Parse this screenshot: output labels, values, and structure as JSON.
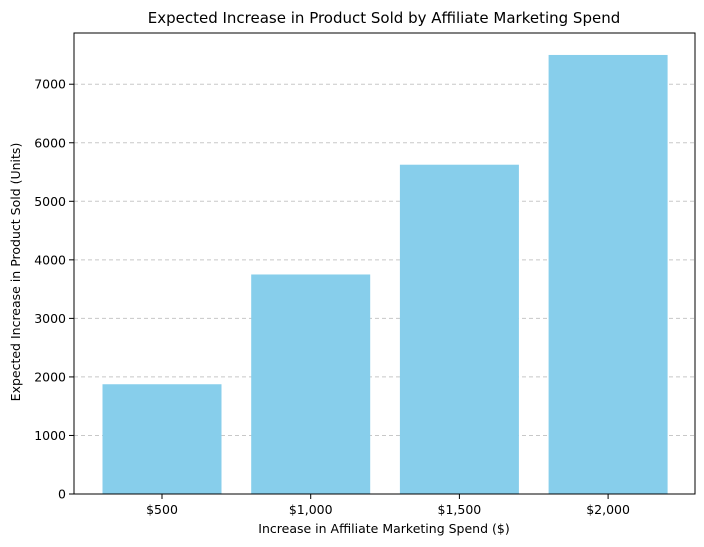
{
  "chart_data": {
    "type": "bar",
    "title": "Expected Increase in Product Sold by Affiliate Marketing Spend",
    "xlabel": "Increase in Affiliate Marketing Spend ($)",
    "ylabel": "Expected Increase in Product Sold (Units)",
    "categories": [
      "$500",
      "$1,000",
      "$1,500",
      "$2,000"
    ],
    "values": [
      1875,
      3750,
      5625,
      7500
    ],
    "ylim": [
      0,
      7875
    ],
    "yticks": [
      0,
      1000,
      2000,
      3000,
      4000,
      5000,
      6000,
      7000
    ],
    "grid": "y-dashed",
    "bar_color": "#87CEEB",
    "grid_color": "#c8c8c8"
  }
}
